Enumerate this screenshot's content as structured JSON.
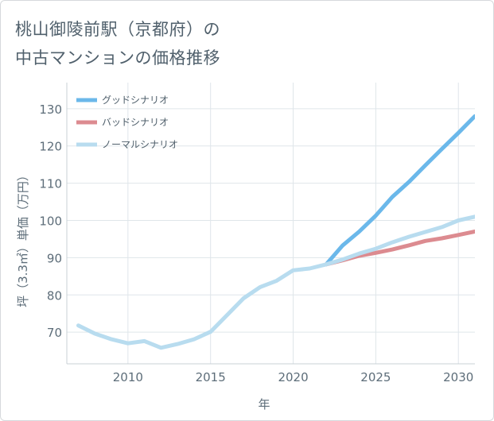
{
  "header": {
    "title_line1": "桃山御陵前駅（京都府）の",
    "title_line2": "中古マンションの価格推移"
  },
  "chart_data": {
    "type": "line",
    "xlabel": "年",
    "ylabel": "坪（3.3㎡）単価（万円）",
    "xlim": [
      2006.3,
      2031
    ],
    "ylim": [
      61.5,
      137
    ],
    "x_ticks": [
      2010,
      2015,
      2020,
      2025,
      2030
    ],
    "y_ticks": [
      70,
      80,
      90,
      100,
      110,
      120,
      130
    ],
    "grid": true,
    "legend_position": "top-left",
    "series": [
      {
        "name": "グッドシナリオ",
        "color": "#6bb8ea",
        "x": [
          2022,
          2023,
          2024,
          2025,
          2026,
          2027,
          2028,
          2029,
          2030,
          2031
        ],
        "y": [
          88.2,
          93.3,
          97.0,
          101.3,
          106.3,
          110.3,
          114.8,
          119.2,
          123.5,
          128.0
        ]
      },
      {
        "name": "バッドシナリオ",
        "color": "#dc8b90",
        "x": [
          2022,
          2023,
          2024,
          2025,
          2026,
          2027,
          2028,
          2029,
          2030,
          2031
        ],
        "y": [
          88.2,
          89.3,
          90.5,
          91.3,
          92.2,
          93.3,
          94.5,
          95.2,
          96.1,
          97.0
        ]
      },
      {
        "name": "ノーマルシナリオ",
        "color": "#b8dcef",
        "x": [
          2007,
          2008,
          2009,
          2010,
          2011,
          2012,
          2013,
          2014,
          2015,
          2016,
          2017,
          2018,
          2019,
          2020,
          2021,
          2022,
          2023,
          2024,
          2025,
          2026,
          2027,
          2028,
          2029,
          2030,
          2031
        ],
        "y": [
          71.8,
          69.6,
          68.1,
          67.0,
          67.6,
          65.8,
          66.8,
          68.1,
          70.1,
          74.6,
          79.1,
          82.1,
          83.8,
          86.6,
          87.1,
          88.2,
          89.5,
          91.1,
          92.4,
          94.1,
          95.6,
          96.9,
          98.2,
          100.0,
          101.0
        ]
      }
    ]
  }
}
